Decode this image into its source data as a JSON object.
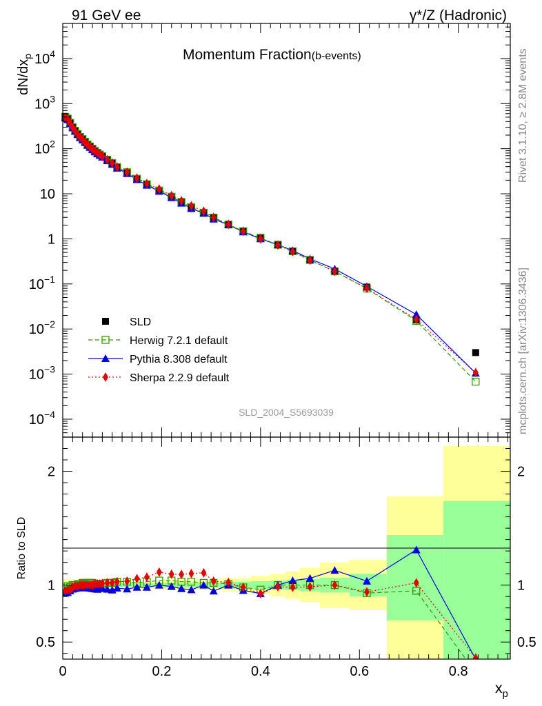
{
  "header": {
    "left": "91 GeV ee",
    "right": "γ*/Z (Hadronic)",
    "side_top": "Rivet 3.1.10, ≥ 2.8M events",
    "side_bottom": "mcplots.cern.ch [arXiv:1306.3436]"
  },
  "chart_data": [
    {
      "type": "line",
      "title_main": "Momentum Fraction",
      "title_sub": "(b-events)",
      "ylabel": "dN/dx",
      "ylabel_sub": "p",
      "watermark": "SLD_2004_S5693039",
      "yscale": "log",
      "xlim": [
        0,
        0.905
      ],
      "ylim": [
        4e-05,
        60000
      ],
      "y_ticks": [
        {
          "value": 0.0001,
          "base": "10",
          "exp": "−4"
        },
        {
          "value": 0.001,
          "base": "10",
          "exp": "−3"
        },
        {
          "value": 0.01,
          "base": "10",
          "exp": "−2"
        },
        {
          "value": 0.1,
          "base": "10",
          "exp": "−1"
        },
        {
          "value": 1,
          "base": "1",
          "exp": ""
        },
        {
          "value": 10,
          "base": "10",
          "exp": ""
        },
        {
          "value": 100,
          "base": "10",
          "exp": "2"
        },
        {
          "value": 1000,
          "base": "10",
          "exp": "3"
        },
        {
          "value": 10000,
          "base": "10",
          "exp": "4"
        }
      ],
      "legend": [
        {
          "key": "sld",
          "label": "SLD"
        },
        {
          "key": "herwig",
          "label": "Herwig 7.2.1 default"
        },
        {
          "key": "pythia",
          "label": "Pythia 8.308 default"
        },
        {
          "key": "sherpa",
          "label": "Sherpa 2.2.9 default"
        }
      ],
      "x": [
        0.005,
        0.01,
        0.015,
        0.02,
        0.025,
        0.03,
        0.035,
        0.04,
        0.045,
        0.05,
        0.055,
        0.06,
        0.065,
        0.07,
        0.075,
        0.08,
        0.09,
        0.1,
        0.11,
        0.13,
        0.15,
        0.17,
        0.195,
        0.22,
        0.24,
        0.26,
        0.285,
        0.305,
        0.335,
        0.365,
        0.4,
        0.435,
        0.465,
        0.5,
        0.55,
        0.615,
        0.715,
        0.835
      ],
      "series": [
        {
          "key": "sld",
          "color": "#000000",
          "values": [
            520,
            470,
            380,
            300,
            250,
            210,
            180,
            160,
            140,
            122,
            110,
            98,
            88,
            80,
            73,
            67,
            56,
            47,
            38,
            29,
            21,
            15.8,
            11.4,
            8.3,
            6.4,
            4.9,
            3.7,
            2.9,
            2.05,
            1.5,
            1.08,
            0.74,
            0.53,
            0.34,
            0.19,
            0.085,
            0.016,
            0.003
          ]
        },
        {
          "key": "herwig",
          "color": "#339900",
          "style": "dashed",
          "values": [
            505,
            465,
            375,
            300,
            250,
            212,
            182,
            163,
            142,
            124,
            112,
            100,
            89,
            81,
            74,
            68,
            57,
            48,
            39,
            30,
            21.5,
            16.3,
            11.8,
            8.6,
            6.6,
            5.0,
            3.8,
            2.95,
            2.08,
            1.47,
            1.04,
            0.74,
            0.53,
            0.34,
            0.19,
            0.079,
            0.0152,
            0.00068
          ]
        },
        {
          "key": "pythia",
          "color": "#0000e6",
          "style": "solid",
          "values": [
            485,
            440,
            360,
            290,
            242,
            205,
            176,
            156,
            137,
            119,
            107,
            95,
            85,
            77,
            71,
            65,
            54,
            45,
            37,
            28,
            20.6,
            15.5,
            11.4,
            8.2,
            6.2,
            4.7,
            3.7,
            2.75,
            2.05,
            1.43,
            1.0,
            0.74,
            0.55,
            0.36,
            0.215,
            0.088,
            0.021,
            0.00105
          ]
        },
        {
          "key": "sherpa",
          "color": "#e60000",
          "style": "dotted",
          "values": [
            495,
            450,
            365,
            295,
            248,
            208,
            180,
            160,
            140,
            122,
            110,
            98,
            89,
            81,
            74,
            68,
            57,
            48,
            39,
            30,
            22.2,
            16.9,
            12.7,
            9.1,
            7.0,
            5.4,
            4.1,
            3.0,
            2.1,
            1.47,
            1.0,
            0.73,
            0.52,
            0.335,
            0.19,
            0.08,
            0.0163,
            0.00108
          ]
        }
      ]
    },
    {
      "type": "line",
      "ylabel": "Ratio to SLD",
      "xlabel": "x",
      "xlabel_sub": "p",
      "xlim": [
        0,
        0.905
      ],
      "ylim": [
        0.35,
        2.3
      ],
      "y_ticks": [
        {
          "value": 0.5,
          "label": "0.5"
        },
        {
          "value": 1,
          "label": "1"
        },
        {
          "value": 2,
          "label": "2"
        }
      ],
      "x_ticks": [
        {
          "value": 0,
          "label": "0"
        },
        {
          "value": 0.2,
          "label": "0.2"
        },
        {
          "value": 0.4,
          "label": "0.4"
        },
        {
          "value": 0.6,
          "label": "0.6"
        },
        {
          "value": 0.8,
          "label": "0.8"
        }
      ],
      "bands": [
        {
          "x0": 0.0,
          "x1": 0.02,
          "yellow": [
            0.95,
            1.05
          ],
          "green": [
            0.975,
            1.025
          ]
        },
        {
          "x0": 0.02,
          "x1": 0.1,
          "yellow": [
            0.96,
            1.04
          ],
          "green": [
            0.98,
            1.02
          ]
        },
        {
          "x0": 0.1,
          "x1": 0.2,
          "yellow": [
            0.965,
            1.035
          ],
          "green": [
            0.983,
            1.017
          ]
        },
        {
          "x0": 0.2,
          "x1": 0.32,
          "yellow": [
            0.955,
            1.045
          ],
          "green": [
            0.978,
            1.022
          ]
        },
        {
          "x0": 0.32,
          "x1": 0.38,
          "yellow": [
            0.94,
            1.06
          ],
          "green": [
            0.97,
            1.03
          ]
        },
        {
          "x0": 0.38,
          "x1": 0.42,
          "yellow": [
            0.92,
            1.08
          ],
          "green": [
            0.965,
            1.035
          ]
        },
        {
          "x0": 0.42,
          "x1": 0.45,
          "yellow": [
            0.9,
            1.1
          ],
          "green": [
            0.96,
            1.04
          ]
        },
        {
          "x0": 0.45,
          "x1": 0.48,
          "yellow": [
            0.88,
            1.12
          ],
          "green": [
            0.955,
            1.045
          ]
        },
        {
          "x0": 0.48,
          "x1": 0.52,
          "yellow": [
            0.85,
            1.15
          ],
          "green": [
            0.945,
            1.055
          ]
        },
        {
          "x0": 0.52,
          "x1": 0.58,
          "yellow": [
            0.8,
            1.2
          ],
          "green": [
            0.935,
            1.065
          ]
        },
        {
          "x0": 0.58,
          "x1": 0.655,
          "yellow": [
            0.78,
            1.22
          ],
          "green": [
            0.9,
            1.1
          ]
        },
        {
          "x0": 0.655,
          "x1": 0.77,
          "yellow": [
            0.0,
            1.78
          ],
          "green": [
            0.69,
            1.44
          ]
        },
        {
          "x0": 0.77,
          "x1": 0.905,
          "yellow": [
            0.0,
            2.22
          ],
          "green": [
            0.0,
            1.74
          ]
        }
      ],
      "series": [
        {
          "key": "herwig",
          "color": "#339900",
          "style": "dashed",
          "values": [
            0.97,
            0.99,
            0.985,
            1.0,
            1.0,
            1.01,
            1.01,
            1.02,
            1.015,
            1.02,
            1.02,
            1.02,
            1.01,
            1.01,
            1.01,
            1.01,
            1.02,
            1.02,
            1.03,
            1.03,
            1.02,
            1.03,
            1.04,
            1.04,
            1.03,
            1.03,
            1.02,
            1.02,
            1.01,
            0.98,
            0.96,
            1.0,
            1.0,
            1.0,
            1.0,
            0.93,
            0.95,
            0.23
          ]
        },
        {
          "key": "pythia",
          "color": "#0000e6",
          "style": "solid",
          "values": [
            0.93,
            0.935,
            0.95,
            0.965,
            0.97,
            0.975,
            0.978,
            0.975,
            0.978,
            0.976,
            0.973,
            0.969,
            0.966,
            0.963,
            0.972,
            0.97,
            0.964,
            0.957,
            0.974,
            0.966,
            0.981,
            0.981,
            1.0,
            0.988,
            0.969,
            0.959,
            1.0,
            0.948,
            1.0,
            0.953,
            0.926,
            1.0,
            1.04,
            1.06,
            1.13,
            1.035,
            1.31,
            0.35
          ]
        },
        {
          "key": "sherpa",
          "color": "#e60000",
          "style": "dotted",
          "values": [
            0.952,
            0.957,
            0.96,
            0.983,
            0.992,
            0.99,
            1.0,
            1.0,
            1.0,
            1.0,
            1.0,
            1.0,
            1.01,
            1.01,
            1.01,
            1.015,
            1.02,
            1.02,
            1.03,
            1.034,
            1.057,
            1.07,
            1.114,
            1.096,
            1.094,
            1.102,
            1.108,
            1.034,
            1.024,
            0.98,
            0.926,
            0.986,
            0.981,
            0.985,
            1.0,
            0.94,
            1.02,
            0.36
          ]
        }
      ]
    }
  ]
}
